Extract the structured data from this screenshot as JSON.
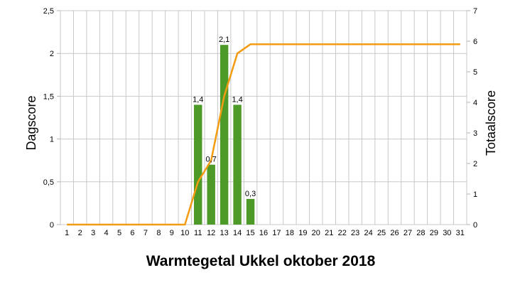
{
  "chart_data": {
    "type": "bar+line",
    "title": "Warmtegetal Ukkel oktober 2018",
    "ylabel_left": "Dagscore",
    "ylabel_right": "Totaalscore",
    "ylim_left": [
      0,
      2.5
    ],
    "ylim_right": [
      0,
      7
    ],
    "left_ticks": [
      "0",
      "0,5",
      "1",
      "1,5",
      "2",
      "2,5"
    ],
    "right_ticks": [
      "0",
      "1",
      "2",
      "3",
      "4",
      "5",
      "6",
      "7"
    ],
    "categories": [
      "1",
      "2",
      "3",
      "4",
      "5",
      "6",
      "7",
      "8",
      "9",
      "10",
      "11",
      "12",
      "13",
      "14",
      "15",
      "16",
      "17",
      "18",
      "19",
      "20",
      "21",
      "22",
      "23",
      "24",
      "25",
      "26",
      "27",
      "28",
      "29",
      "30",
      "31"
    ],
    "grid": true,
    "series": [
      {
        "type": "bar",
        "axis": "left",
        "color": "#4e9a28",
        "values": [
          0,
          0,
          0,
          0,
          0,
          0,
          0,
          0,
          0,
          0,
          1.4,
          0.7,
          2.1,
          1.4,
          0.3,
          0,
          0,
          0,
          0,
          0,
          0,
          0,
          0,
          0,
          0,
          0,
          0,
          0,
          0,
          0,
          0
        ],
        "labels": [
          "",
          "",
          "",
          "",
          "",
          "",
          "",
          "",
          "",
          "",
          "1,4",
          "0,7",
          "2,1",
          "1,4",
          "0,3",
          "",
          "",
          "",
          "",
          "",
          "",
          "",
          "",
          "",
          "",
          "",
          "",
          "",
          "",
          "",
          ""
        ]
      },
      {
        "type": "line",
        "axis": "right",
        "color": "#f39c12",
        "values": [
          0,
          0,
          0,
          0,
          0,
          0,
          0,
          0,
          0,
          0,
          1.4,
          2.1,
          4.2,
          5.6,
          5.9,
          5.9,
          5.9,
          5.9,
          5.9,
          5.9,
          5.9,
          5.9,
          5.9,
          5.9,
          5.9,
          5.9,
          5.9,
          5.9,
          5.9,
          5.9,
          5.9
        ]
      }
    ]
  }
}
